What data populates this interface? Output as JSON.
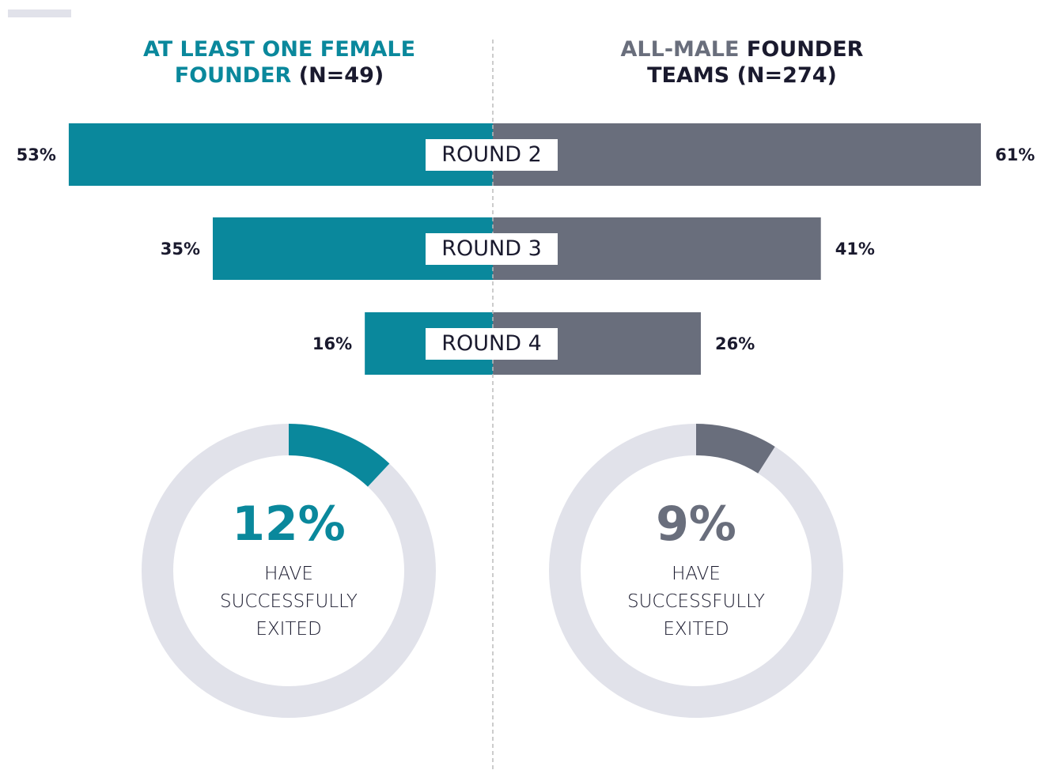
{
  "chart_data": [
    {
      "type": "butterfly",
      "categories": [
        "ROUND 2",
        "ROUND 3",
        "ROUND 4"
      ],
      "series": [
        {
          "label": [
            "AT LEAST ONE FEMALE FOUNDER",
            "(N=49)"
          ],
          "color": "#0a889c",
          "values": [
            53,
            35,
            16
          ],
          "value_labels": [
            "53%",
            "35%",
            "16%"
          ]
        },
        {
          "label": [
            "ALL-MALE",
            "FOUNDER TEAMS (N=274)"
          ],
          "color": "#696e7c",
          "values": [
            61,
            41,
            26
          ],
          "value_labels": [
            "61%",
            "41%",
            "26%"
          ]
        }
      ]
    },
    {
      "type": "donut",
      "values": [
        12,
        9
      ],
      "value_labels": [
        "12%",
        "9%"
      ],
      "colors": [
        "#0a889c",
        "#696e7c"
      ],
      "track_color": "#e1e2ea",
      "captions": [
        "HAVE SUCCESSFULLY EXITED",
        "HAVE SUCCESSFULLY EXITED"
      ]
    }
  ]
}
